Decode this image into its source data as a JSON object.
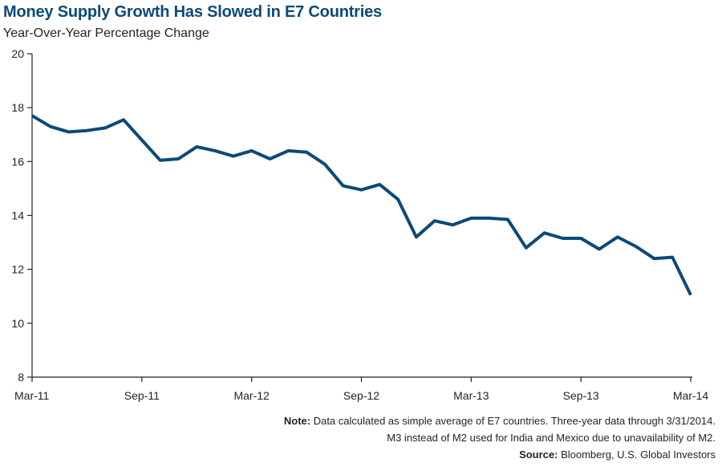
{
  "header": {
    "title": "Money Supply Growth Has Slowed in E7 Countries",
    "subtitle": "Year-Over-Year Percentage Change"
  },
  "footer": {
    "note_label": "Note:",
    "note_line1": " Data calculated as simple average of E7 countries. Three-year data through 3/31/2014.",
    "note_line2": "M3 instead of M2 used for India and Mexico due to unavailability of M2.",
    "source_label": "Source:",
    "source_text": " Bloomberg, U.S. Global Investors"
  },
  "colors": {
    "line": "#0b4a7a",
    "title": "#0b4a7a",
    "axis": "#231f20"
  },
  "chart_data": {
    "type": "line",
    "title": "Money Supply Growth Has Slowed in E7 Countries",
    "subtitle": "Year-Over-Year Percentage Change",
    "xlabel": "",
    "ylabel": "",
    "ylim": [
      8,
      20
    ],
    "yticks": [
      8,
      10,
      12,
      14,
      16,
      18,
      20
    ],
    "xticks": [
      "Mar-11",
      "Sep-11",
      "Mar-12",
      "Sep-12",
      "Mar-13",
      "Sep-13",
      "Mar-14"
    ],
    "x": [
      "Mar-11",
      "Apr-11",
      "May-11",
      "Jun-11",
      "Jul-11",
      "Aug-11",
      "Sep-11",
      "Oct-11",
      "Nov-11",
      "Dec-11",
      "Jan-12",
      "Feb-12",
      "Mar-12",
      "Apr-12",
      "May-12",
      "Jun-12",
      "Jul-12",
      "Aug-12",
      "Sep-12",
      "Oct-12",
      "Nov-12",
      "Dec-12",
      "Jan-13",
      "Feb-13",
      "Mar-13",
      "Apr-13",
      "May-13",
      "Jun-13",
      "Jul-13",
      "Aug-13",
      "Sep-13",
      "Oct-13",
      "Nov-13",
      "Dec-13",
      "Jan-14",
      "Feb-14",
      "Mar-14"
    ],
    "grid": false,
    "series": [
      {
        "values": [
          17.7,
          17.3,
          17.1,
          17.15,
          17.25,
          17.55,
          16.8,
          16.05,
          16.1,
          16.55,
          16.4,
          16.2,
          16.4,
          16.1,
          16.4,
          16.35,
          15.9,
          15.1,
          14.95,
          15.15,
          14.6,
          13.2,
          13.8,
          13.65,
          13.9,
          13.9,
          13.85,
          12.8,
          13.35,
          13.15,
          13.15,
          12.75,
          13.2,
          12.85,
          12.4,
          12.45,
          11.05
        ]
      }
    ]
  }
}
